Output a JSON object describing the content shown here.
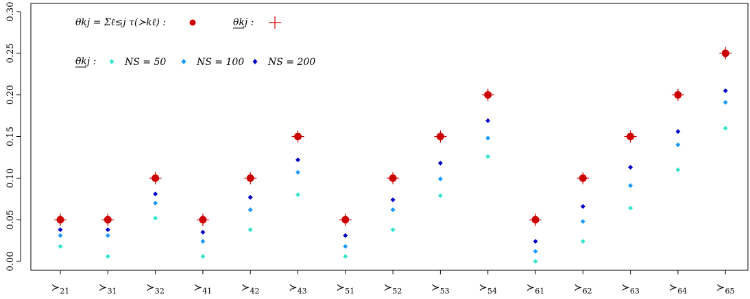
{
  "chart_data": {
    "type": "scatter",
    "categories": [
      "≻21",
      "≻31",
      "≻32",
      "≻41",
      "≻42",
      "≻43",
      "≻51",
      "≻52",
      "≻53",
      "≻54",
      "≻61",
      "≻62",
      "≻63",
      "≻64",
      "≻65"
    ],
    "ylim": [
      0,
      0.3
    ],
    "y_ticks": [
      "0.00",
      "0.05",
      "0.10",
      "0.15",
      "0.20",
      "0.25",
      "0.30"
    ],
    "grid": false,
    "series": [
      {
        "name": "θkj = Σℓ≤j τ(≻kℓ)",
        "marker": "dot",
        "color": "#cc0000",
        "values": [
          0.05,
          0.05,
          0.1,
          0.05,
          0.1,
          0.15,
          0.05,
          0.1,
          0.15,
          0.2,
          0.05,
          0.1,
          0.15,
          0.2,
          0.25
        ]
      },
      {
        "name": "θkj (lower bar)",
        "marker": "cross",
        "color": "#cc0000",
        "values": [
          0.05,
          0.05,
          0.1,
          0.05,
          0.1,
          0.15,
          0.05,
          0.1,
          0.15,
          0.2,
          0.05,
          0.1,
          0.15,
          0.2,
          0.25
        ]
      },
      {
        "name": "NS = 50",
        "marker": "diamond",
        "color": "#33e6cc",
        "values": [
          0.018,
          0.006,
          0.052,
          0.006,
          0.038,
          0.08,
          0.006,
          0.038,
          0.079,
          0.126,
          0.0,
          0.024,
          0.064,
          0.11,
          0.16
        ]
      },
      {
        "name": "NS = 100",
        "marker": "diamond",
        "color": "#1a99ff",
        "values": [
          0.031,
          0.031,
          0.07,
          0.024,
          0.062,
          0.107,
          0.018,
          0.062,
          0.099,
          0.148,
          0.012,
          0.048,
          0.091,
          0.14,
          0.191
        ]
      },
      {
        "name": "NS = 200",
        "marker": "diamond",
        "color": "#0000cc",
        "values": [
          0.038,
          0.038,
          0.081,
          0.035,
          0.077,
          0.122,
          0.031,
          0.074,
          0.118,
          0.169,
          0.024,
          0.066,
          0.113,
          0.156,
          0.205
        ]
      }
    ]
  },
  "legend": {
    "row1_label_a": "θkj = Σℓ≤j τ(≻kℓ) :",
    "row1_label_b": "θkj :",
    "row2_label": "θ̂kj :",
    "ns50": "NS = 50",
    "ns100": "NS = 100",
    "ns200": "NS = 200"
  },
  "colors": {
    "theta": "#cc0000",
    "ns50": "#33e6cc",
    "ns100": "#1a99ff",
    "ns200": "#0000cc"
  }
}
